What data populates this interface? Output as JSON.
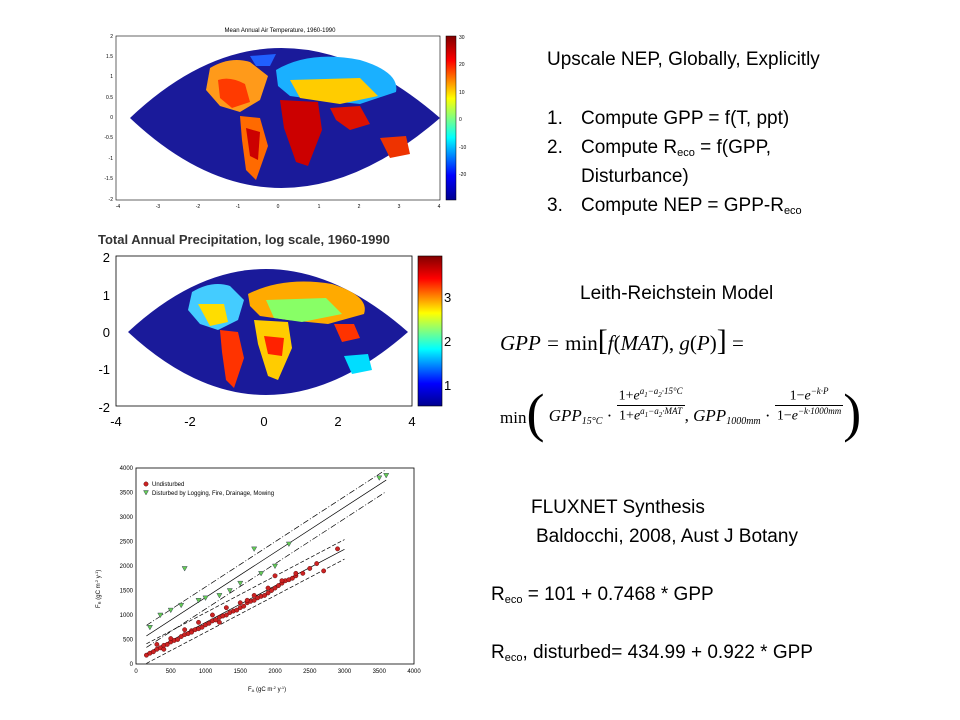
{
  "slide": {
    "heading": "Upscale NEP, Globally, Explicitly",
    "steps": [
      {
        "num": "1.",
        "text": "Compute GPP = f(T, ppt)"
      },
      {
        "num": "2.",
        "text_a": "Compute R",
        "sub": "eco",
        "text_b": " = f(GPP,",
        "text_c": "Disturbance)"
      },
      {
        "num": "3.",
        "text_a": "Compute NEP = GPP-R",
        "sub": "eco"
      }
    ],
    "model_title": "Leith-Reichstein Model",
    "fluxnet_title": "FLUXNET Synthesis",
    "fluxnet_cite": "Baldocchi, 2008, Aust J Botany",
    "eq1": {
      "a": "R",
      "sub": "eco",
      "b": " = 101 + 0.7468 * GPP"
    },
    "eq2": {
      "a": "R",
      "sub": "eco",
      "b": ", disturbed= 434.99 + 0.922 * GPP"
    }
  },
  "temp_map": {
    "title": "Mean Annual Air Temperature, 1960-1990",
    "yticks": [
      "2",
      "1.5",
      "1",
      "0.5",
      "0",
      "-0.5",
      "-1",
      "-1.5",
      "-2"
    ],
    "xticks": [
      "-4",
      "-3",
      "-2",
      "-1",
      "0",
      "1",
      "2",
      "3",
      "4"
    ],
    "cbar_ticks": [
      "30",
      "20",
      "10",
      "0",
      "-10",
      "-20"
    ]
  },
  "precip_map": {
    "title": "Total Annual Precipitation, log scale, 1960-1990",
    "yticks": [
      "2",
      "1",
      "0",
      "-1",
      "-2"
    ],
    "xticks": [
      "-4",
      "-2",
      "0",
      "2",
      "4"
    ],
    "cbar_ticks": [
      "3",
      "2",
      "1"
    ]
  },
  "scatter": {
    "legend": [
      "Undisturbed",
      "Disturbed by Logging, Fire, Drainage, Mowing"
    ],
    "xlabel": "F",
    "ylabel": "F",
    "xticks": [
      "0",
      "500",
      "1000",
      "1500",
      "2000",
      "2500",
      "3000",
      "3500",
      "4000"
    ],
    "yticks": [
      "4000",
      "3500",
      "3000",
      "2500",
      "2000",
      "1500",
      "1000",
      "500",
      "0"
    ]
  },
  "formula": {
    "line1": "GPP = min[ f(MAT), g(P) ] =",
    "line2": "min( GPP15°C · (1+e^(a1−a2·15°C))/(1+e^(a1−a2·MAT)), GPP1000mm · (1−e^(−k·P))/(1−e^(−k·1000mm)) )"
  },
  "chart_data": {
    "type": "scatter",
    "xlabel": "F",
    "ylabel": "F",
    "xlim": [
      0,
      4000
    ],
    "ylim": [
      0,
      4000
    ],
    "series": [
      {
        "name": "Undisturbed",
        "x": [
          150,
          200,
          250,
          300,
          350,
          400,
          450,
          500,
          550,
          600,
          650,
          700,
          750,
          800,
          850,
          900,
          950,
          1000,
          1050,
          1100,
          1150,
          1200,
          1250,
          1300,
          1350,
          1400,
          1450,
          1500,
          1550,
          1600,
          1650,
          1700,
          1750,
          1800,
          1850,
          1900,
          1950,
          2000,
          2050,
          2100,
          2150,
          2200,
          2250,
          2300,
          2400,
          2500,
          2600,
          2700,
          2900,
          300,
          500,
          700,
          900,
          1100,
          1300,
          1500,
          1700,
          1900,
          2100,
          2300,
          400,
          800,
          1200,
          1600,
          2000
        ],
        "y": [
          180,
          220,
          250,
          300,
          330,
          380,
          400,
          450,
          480,
          500,
          560,
          600,
          620,
          680,
          700,
          720,
          750,
          800,
          830,
          880,
          900,
          950,
          980,
          1000,
          1050,
          1080,
          1100,
          1150,
          1180,
          1250,
          1280,
          1300,
          1350,
          1380,
          1400,
          1450,
          1500,
          1550,
          1600,
          1650,
          1700,
          1720,
          1750,
          1800,
          1850,
          1950,
          2050,
          1900,
          2350,
          400,
          520,
          700,
          850,
          1000,
          1150,
          1250,
          1400,
          1550,
          1700,
          1850,
          300,
          650,
          850,
          1300,
          1800
        ]
      },
      {
        "name": "Disturbed by Logging, Fire, Drainage, Mowing",
        "x": [
          200,
          350,
          500,
          650,
          700,
          900,
          1000,
          1200,
          1350,
          1500,
          1700,
          1800,
          2000,
          2200,
          3500,
          3600
        ],
        "y": [
          750,
          1000,
          1100,
          1200,
          1950,
          1300,
          1350,
          1400,
          1500,
          1650,
          2350,
          1850,
          2000,
          2450,
          3800,
          3850
        ]
      }
    ]
  }
}
